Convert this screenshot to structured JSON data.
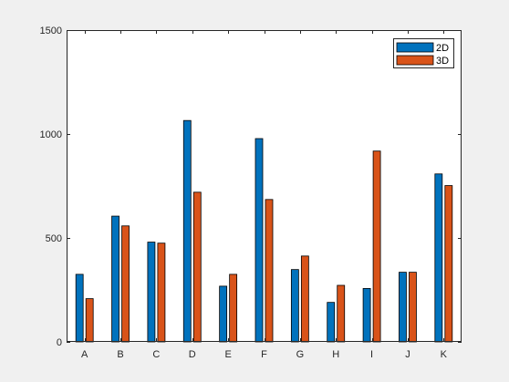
{
  "window": {
    "background": "#f0f0f0"
  },
  "chart_data": {
    "type": "bar",
    "title": "",
    "xlabel": "",
    "ylabel": "",
    "categories": [
      "A",
      "B",
      "C",
      "D",
      "E",
      "F",
      "G",
      "H",
      "I",
      "J",
      "K"
    ],
    "series": [
      {
        "name": "2D",
        "color": "#0072BD",
        "values": [
          325,
          605,
          480,
          1065,
          268,
          978,
          348,
          190,
          257,
          335,
          808
        ]
      },
      {
        "name": "3D",
        "color": "#D95319",
        "values": [
          208,
          558,
          475,
          720,
          325,
          685,
          413,
          272,
          918,
          335,
          752
        ]
      }
    ],
    "ylim": [
      0,
      1500
    ],
    "yticks": [
      0,
      500,
      1000,
      1500
    ],
    "ytick_labels": [
      "0",
      "500",
      "1000",
      "1500"
    ],
    "grid": false,
    "legend_position": "top-right",
    "plot_background": "#ffffff",
    "axis_color": "#262626"
  }
}
